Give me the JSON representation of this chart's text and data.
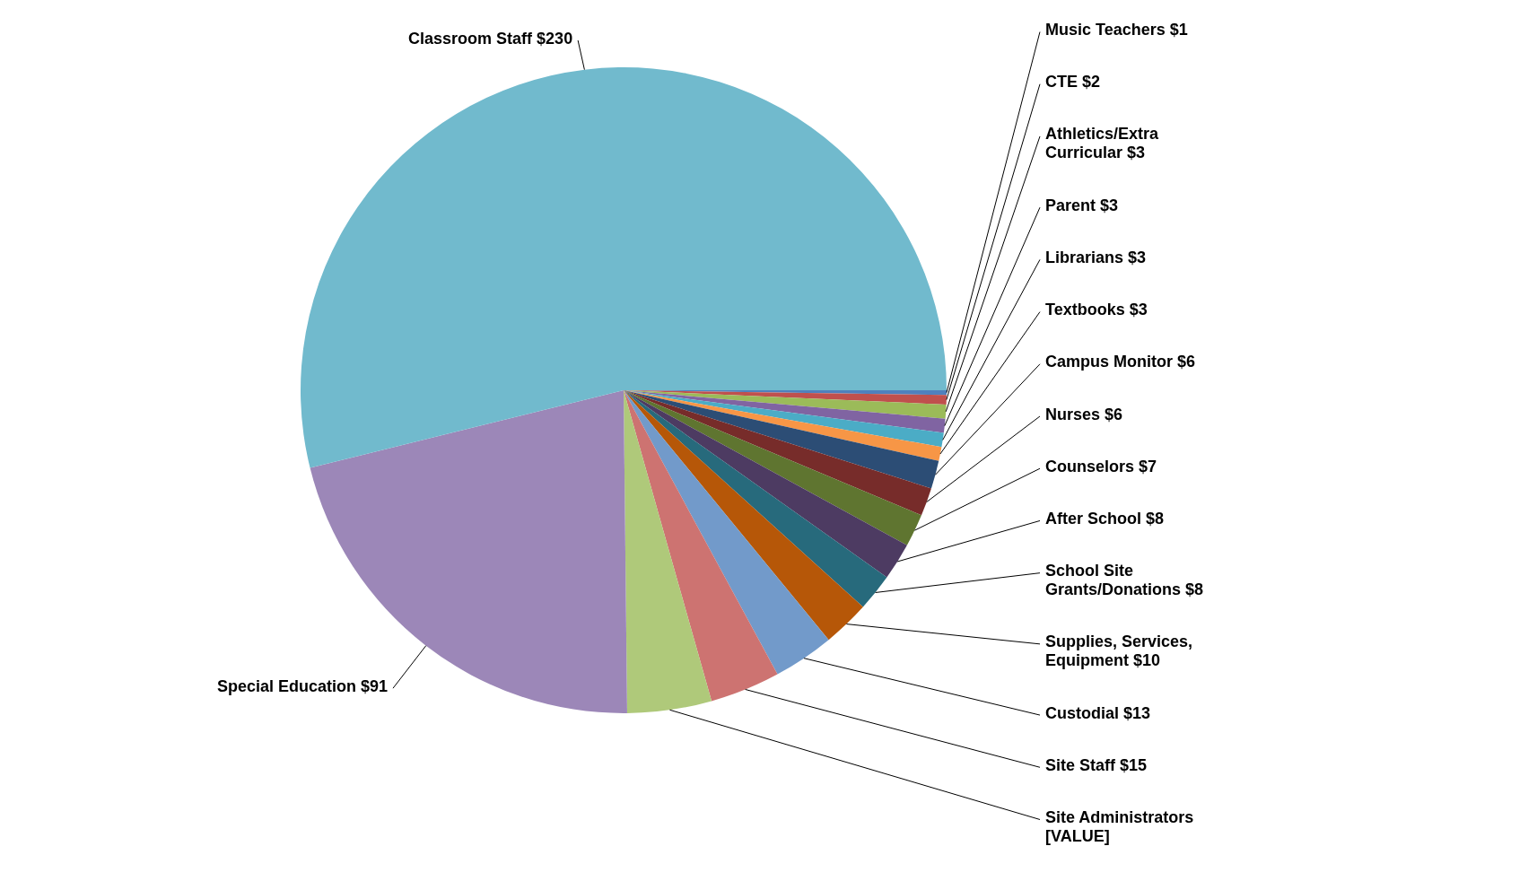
{
  "chart_data": {
    "type": "pie",
    "categories": [
      "Music Teachers",
      "CTE",
      "Athletics/Extra Curricular",
      "Parent",
      "Librarians",
      "Textbooks",
      "Campus Monitor",
      "Nurses",
      "Counselors",
      "After School",
      "School Site Grants/Donations",
      "Supplies, Services, Equipment",
      "Custodial",
      "Site Staff",
      "Site Administrators",
      "Special Education",
      "Classroom Staff"
    ],
    "values": [
      1,
      2,
      3,
      3,
      3,
      3,
      6,
      6,
      7,
      8,
      8,
      10,
      13,
      15,
      18,
      91,
      230
    ],
    "value_labels": [
      "$1",
      "$2",
      "$3",
      "$3",
      "$3",
      "$3",
      "$6",
      "$6",
      "$7",
      "$8",
      "$8",
      "$10",
      "$13",
      "$15",
      "[VALUE]",
      "$91",
      "$230"
    ],
    "colors": [
      "#4f81bd",
      "#c0504d",
      "#9bbb59",
      "#8064a2",
      "#4bacc6",
      "#f79646",
      "#2c4d75",
      "#772c2a",
      "#5f7530",
      "#4d3b62",
      "#276a7c",
      "#b65708",
      "#729aca",
      "#cd7371",
      "#afc97a",
      "#9c87b8",
      "#71bacd"
    ],
    "legend": false
  }
}
